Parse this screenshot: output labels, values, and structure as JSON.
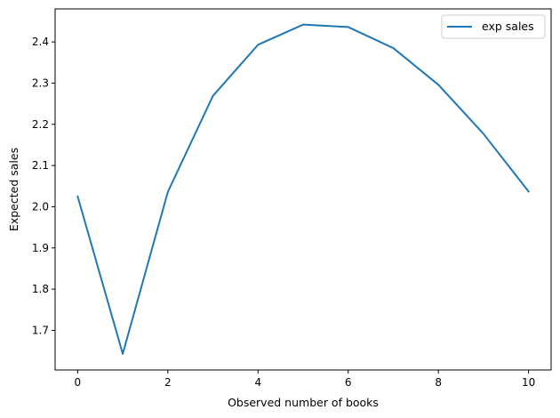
{
  "chart_data": {
    "type": "line",
    "xlabel": "Observed number of books",
    "ylabel": "Expected sales",
    "xlim": [
      -0.5,
      10.5
    ],
    "ylim": [
      1.6038,
      2.4801
    ],
    "x_ticks": [
      0,
      2,
      4,
      6,
      8,
      10
    ],
    "x_tick_labels": [
      "0",
      "2",
      "4",
      "6",
      "8",
      "10"
    ],
    "y_ticks": [
      1.7,
      1.8,
      1.9,
      2.0,
      2.1,
      2.2,
      2.3,
      2.4
    ],
    "y_tick_labels": [
      "1.7",
      "1.8",
      "1.9",
      "2.0",
      "2.1",
      "2.2",
      "2.3",
      "2.4"
    ],
    "grid": false,
    "legend_position": "top-right",
    "series": [
      {
        "name": "exp sales",
        "color": "#1f77b4",
        "x": [
          0,
          1,
          2,
          3,
          4,
          5,
          6,
          7,
          8,
          9,
          10
        ],
        "y": [
          2.025,
          1.643,
          2.036,
          2.269,
          2.393,
          2.442,
          2.436,
          2.385,
          2.296,
          2.177,
          2.037
        ]
      }
    ]
  }
}
